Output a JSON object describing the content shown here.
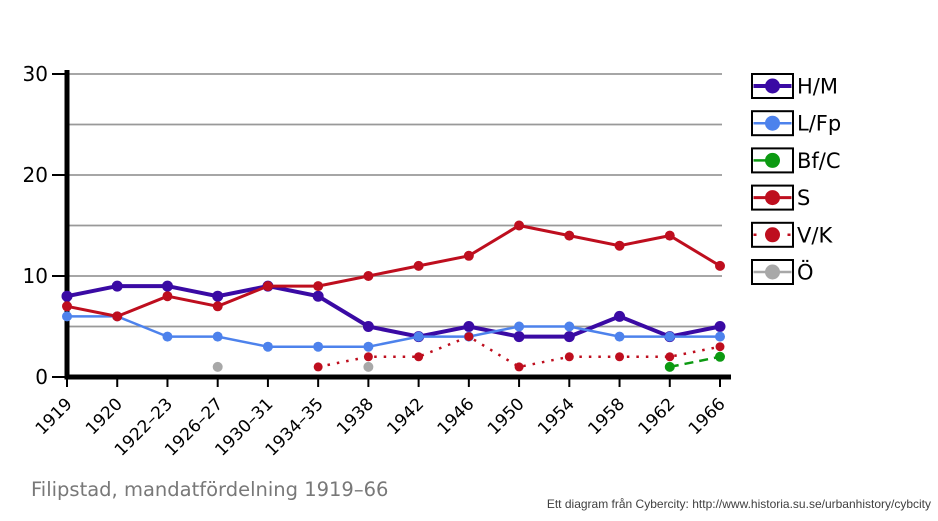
{
  "chart_data": {
    "type": "line",
    "title": "Filipstad, mandatfördelning 1919–66",
    "credit": "Ett diagram från Cybercity: http://www.historia.su.se/urbanhistory/cybcity",
    "categories": [
      "1919",
      "1920",
      "1922–23",
      "1926–27",
      "1930–31",
      "1934–35",
      "1938",
      "1942",
      "1946",
      "1950",
      "1954",
      "1958",
      "1962",
      "1966"
    ],
    "ylim": [
      0,
      30
    ],
    "yticks": [
      0,
      10,
      20,
      30
    ],
    "gridline_step": 5,
    "grid_color": "#999999",
    "axis_color": "#000000",
    "legend_position": "right",
    "series": [
      {
        "name": "H/M",
        "color": "#3A0AA4",
        "dash": "solid",
        "line_width": 4,
        "dot_radius": 5.5,
        "values": [
          8,
          9,
          9,
          8,
          9,
          8,
          5,
          4,
          5,
          4,
          4,
          6,
          4,
          5
        ]
      },
      {
        "name": "L/Fp",
        "color": "#4D82EC",
        "dash": "solid",
        "line_width": 2.5,
        "dot_radius": 5,
        "values": [
          6,
          6,
          4,
          4,
          3,
          3,
          3,
          4,
          4,
          5,
          5,
          4,
          4,
          4
        ]
      },
      {
        "name": "Bf/C",
        "color": "#0C9A12",
        "dash": "dashed",
        "line_width": 2.5,
        "dot_radius": 5,
        "values": [
          null,
          null,
          null,
          null,
          null,
          null,
          null,
          null,
          null,
          null,
          null,
          null,
          1,
          2
        ]
      },
      {
        "name": "S",
        "color": "#BE0E1E",
        "dash": "solid",
        "line_width": 3,
        "dot_radius": 5,
        "values": [
          7,
          6,
          8,
          7,
          9,
          9,
          10,
          11,
          12,
          15,
          14,
          13,
          14,
          11
        ]
      },
      {
        "name": "V/K",
        "color": "#BE0E1E",
        "dash": "dotted",
        "line_width": 2.5,
        "dot_radius": 4.5,
        "values": [
          null,
          null,
          null,
          null,
          null,
          1,
          2,
          2,
          4,
          1,
          2,
          2,
          2,
          3
        ]
      },
      {
        "name": "Ö",
        "color": "#A8A8A8",
        "dash": "solid",
        "line_width": 2.5,
        "dot_radius": 5,
        "values": [
          null,
          null,
          null,
          1,
          null,
          null,
          1,
          null,
          null,
          null,
          null,
          null,
          null,
          null
        ]
      }
    ]
  }
}
